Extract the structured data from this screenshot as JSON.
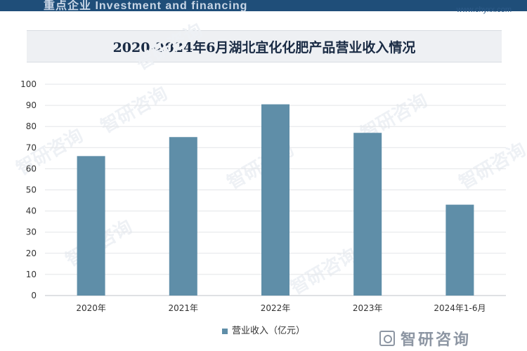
{
  "header": {
    "left_text": "重点企业 Investment and financing",
    "right_text": "www.chyxx.com"
  },
  "chart_data": {
    "type": "bar",
    "title": "2020-2024年6月湖北宜化化肥产品营业收入情况",
    "categories": [
      "2020年",
      "2021年",
      "2022年",
      "2023年",
      "2024年1-6月"
    ],
    "series": [
      {
        "name": "营业收入（亿元）",
        "values": [
          66,
          75,
          90.5,
          77,
          43
        ]
      }
    ],
    "ylim": [
      0,
      100
    ],
    "yticks": [
      0,
      10,
      20,
      30,
      40,
      50,
      60,
      70,
      80,
      90,
      100
    ],
    "grid": true,
    "legend_position": "bottom",
    "bar_color": "#5f8ea8"
  },
  "watermark": {
    "text": "智研咨询"
  },
  "brand": {
    "name": "智研咨询"
  }
}
